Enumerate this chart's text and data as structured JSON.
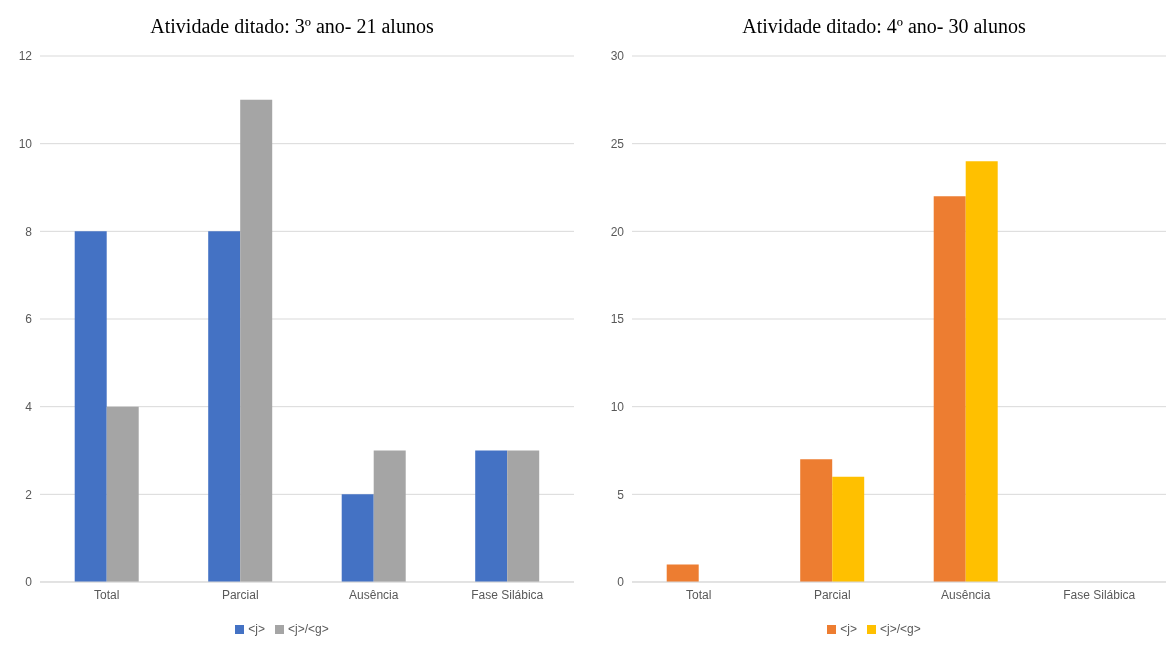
{
  "chart_data": [
    {
      "type": "bar",
      "title": "Atividade ditado: 3º ano- 21 alunos",
      "categories": [
        "Total",
        "Parcial",
        "Ausência",
        "Fase Silábica"
      ],
      "series": [
        {
          "name": "<j>",
          "color": "#4472c4",
          "values": [
            8,
            8,
            2,
            3
          ]
        },
        {
          "name": "<j>/<g>",
          "color": "#a5a5a5",
          "values": [
            4,
            11,
            3,
            3
          ]
        }
      ],
      "ylim": [
        0,
        12
      ],
      "yticks": [
        0,
        2,
        4,
        6,
        8,
        10,
        12
      ],
      "grid": "y",
      "legend": "bottom"
    },
    {
      "type": "bar",
      "title": "Atividade ditado: 4º ano- 30 alunos",
      "categories": [
        "Total",
        "Parcial",
        "Ausência",
        "Fase Silábica"
      ],
      "series": [
        {
          "name": "<j>",
          "color": "#ed7d31",
          "values": [
            1,
            7,
            22,
            0
          ]
        },
        {
          "name": "<j>/<g>",
          "color": "#ffc000",
          "values": [
            0,
            6,
            24,
            0
          ]
        }
      ],
      "ylim": [
        0,
        30
      ],
      "yticks": [
        0,
        5,
        10,
        15,
        20,
        25,
        30
      ],
      "grid": "y",
      "legend": "bottom"
    }
  ]
}
